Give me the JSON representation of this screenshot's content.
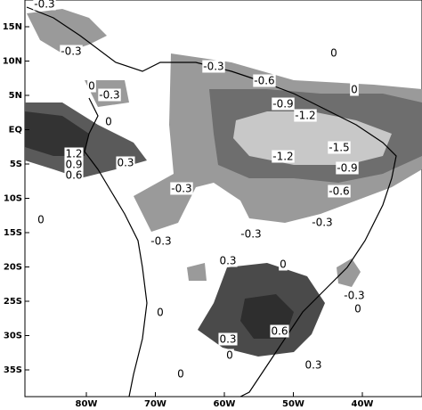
{
  "map": {
    "lat_labels": [
      "15N",
      "10N",
      "5N",
      "EQ",
      "5S",
      "10S",
      "15S",
      "20S",
      "25S",
      "30S",
      "35S"
    ],
    "lon_labels": [
      "80W",
      "70W",
      "60W",
      "50W",
      "40W"
    ],
    "contour_labels": [
      "-0.3",
      "-0.3",
      "0",
      "-0.3",
      "0",
      "1.2",
      "0.9",
      "0.6",
      "0.3",
      "-0.3",
      "-0.6",
      "0",
      "0",
      "-0.9",
      "-1.2",
      "-1.5",
      "-1.2",
      "-0.9",
      "-0.6",
      "-0.3",
      "0",
      "-0.3",
      "-0.3",
      "-0.3",
      "0",
      "0.3",
      "-0.3",
      "0",
      "0",
      "0.6",
      "0.3",
      "0",
      "0.3",
      "0"
    ]
  }
}
